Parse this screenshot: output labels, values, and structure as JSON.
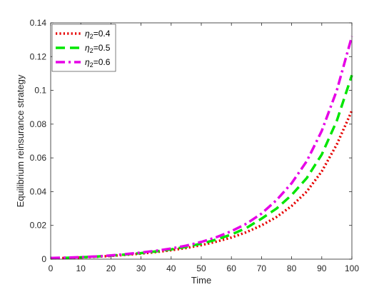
{
  "chart_data": {
    "type": "line",
    "title": "",
    "xlabel": "Time",
    "ylabel": "Equilibrium reinsurance strategy",
    "xlim": [
      0,
      100
    ],
    "ylim": [
      0,
      0.14
    ],
    "xticks": [
      "0",
      "10",
      "20",
      "30",
      "40",
      "50",
      "60",
      "70",
      "80",
      "90",
      "100"
    ],
    "yticks": [
      "0",
      "0.02",
      "0.04",
      "0.06",
      "0.08",
      "0.1",
      "0.12",
      "0.14"
    ],
    "grid": false,
    "legend_position": "top-left",
    "x": [
      0,
      5,
      10,
      15,
      20,
      25,
      30,
      35,
      40,
      45,
      50,
      55,
      60,
      65,
      70,
      75,
      80,
      85,
      90,
      95,
      100
    ],
    "series": [
      {
        "name": "η2=0.4",
        "legend_base": "η",
        "legend_sub": "2",
        "legend_value": "=0.4",
        "color": "#e60000",
        "style": "dotted",
        "values": [
          0.0005,
          0.0007,
          0.001,
          0.0014,
          0.0019,
          0.0026,
          0.0033,
          0.0042,
          0.0053,
          0.0066,
          0.0083,
          0.0104,
          0.0128,
          0.016,
          0.02,
          0.025,
          0.0315,
          0.04,
          0.052,
          0.068,
          0.088
        ]
      },
      {
        "name": "η2=0.5",
        "legend_base": "η",
        "legend_sub": "2",
        "legend_value": "=0.5",
        "color": "#00e600",
        "style": "dashed",
        "values": [
          0.0006,
          0.0008,
          0.0011,
          0.0015,
          0.0021,
          0.0028,
          0.0036,
          0.0046,
          0.0058,
          0.0073,
          0.0092,
          0.0116,
          0.0146,
          0.0185,
          0.024,
          0.03,
          0.038,
          0.048,
          0.062,
          0.082,
          0.109
        ]
      },
      {
        "name": "η2=0.6",
        "legend_base": "η",
        "legend_sub": "2",
        "legend_value": "=0.6",
        "color": "#e600e6",
        "style": "dashdot",
        "values": [
          0.0007,
          0.0009,
          0.0012,
          0.0016,
          0.0022,
          0.003,
          0.0039,
          0.005,
          0.0063,
          0.008,
          0.0102,
          0.013,
          0.0166,
          0.021,
          0.027,
          0.035,
          0.045,
          0.058,
          0.076,
          0.1,
          0.132
        ]
      }
    ]
  }
}
